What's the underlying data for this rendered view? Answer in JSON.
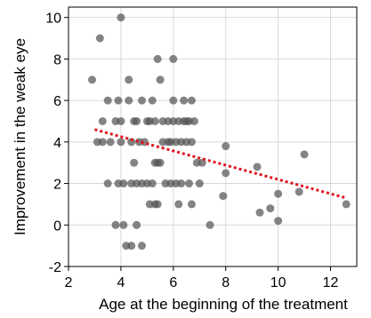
{
  "chart_data": {
    "type": "scatter",
    "xlabel": "Age at the beginning of the treatment",
    "ylabel": "Improvement in the weak eye",
    "xlim": [
      2,
      13
    ],
    "ylim": [
      -2,
      10.5
    ],
    "xticks": [
      "2",
      "4",
      "6",
      "8",
      "10",
      "12"
    ],
    "yticks": [
      "-2",
      "0",
      "2",
      "4",
      "6",
      "8",
      "10"
    ],
    "grid": true,
    "legend": false,
    "marker_color": "#555555",
    "trend_color": "#e0141e",
    "trendline": {
      "x": [
        3.0,
        12.6
      ],
      "y": [
        4.6,
        1.3
      ]
    },
    "points": [
      {
        "x": 2.9,
        "y": 7
      },
      {
        "x": 3.1,
        "y": 4
      },
      {
        "x": 3.2,
        "y": 9
      },
      {
        "x": 3.3,
        "y": 5
      },
      {
        "x": 3.3,
        "y": 4
      },
      {
        "x": 3.5,
        "y": 6
      },
      {
        "x": 3.5,
        "y": 2
      },
      {
        "x": 3.6,
        "y": 4
      },
      {
        "x": 3.8,
        "y": 5
      },
      {
        "x": 3.8,
        "y": 0
      },
      {
        "x": 3.9,
        "y": 6
      },
      {
        "x": 3.9,
        "y": 2
      },
      {
        "x": 4.0,
        "y": 10
      },
      {
        "x": 4.0,
        "y": 5
      },
      {
        "x": 4.0,
        "y": 4
      },
      {
        "x": 4.1,
        "y": 2
      },
      {
        "x": 4.1,
        "y": 0
      },
      {
        "x": 4.2,
        "y": -1
      },
      {
        "x": 4.3,
        "y": 7
      },
      {
        "x": 4.3,
        "y": 6
      },
      {
        "x": 4.4,
        "y": 4
      },
      {
        "x": 4.4,
        "y": 2
      },
      {
        "x": 4.4,
        "y": -1
      },
      {
        "x": 4.5,
        "y": 3
      },
      {
        "x": 4.5,
        "y": 5
      },
      {
        "x": 4.6,
        "y": 5
      },
      {
        "x": 4.6,
        "y": 2
      },
      {
        "x": 4.6,
        "y": 0
      },
      {
        "x": 4.7,
        "y": 4
      },
      {
        "x": 4.8,
        "y": 6
      },
      {
        "x": 4.8,
        "y": 2
      },
      {
        "x": 4.8,
        "y": -1
      },
      {
        "x": 4.9,
        "y": 4
      },
      {
        "x": 5.0,
        "y": 5
      },
      {
        "x": 5.0,
        "y": 2
      },
      {
        "x": 5.1,
        "y": 5
      },
      {
        "x": 5.1,
        "y": 1
      },
      {
        "x": 5.2,
        "y": 6
      },
      {
        "x": 5.2,
        "y": 2
      },
      {
        "x": 5.3,
        "y": 5
      },
      {
        "x": 5.3,
        "y": 3
      },
      {
        "x": 5.3,
        "y": 1
      },
      {
        "x": 5.4,
        "y": 8
      },
      {
        "x": 5.4,
        "y": 3
      },
      {
        "x": 5.4,
        "y": 1
      },
      {
        "x": 5.5,
        "y": 7
      },
      {
        "x": 5.5,
        "y": 3
      },
      {
        "x": 5.6,
        "y": 5
      },
      {
        "x": 5.6,
        "y": 4
      },
      {
        "x": 5.7,
        "y": 2
      },
      {
        "x": 5.8,
        "y": 4
      },
      {
        "x": 5.8,
        "y": 5
      },
      {
        "x": 5.9,
        "y": 2
      },
      {
        "x": 5.9,
        "y": 4
      },
      {
        "x": 6.0,
        "y": 8
      },
      {
        "x": 6.0,
        "y": 5
      },
      {
        "x": 6.0,
        "y": 6
      },
      {
        "x": 6.1,
        "y": 4
      },
      {
        "x": 6.1,
        "y": 2
      },
      {
        "x": 6.2,
        "y": 5
      },
      {
        "x": 6.2,
        "y": 1
      },
      {
        "x": 6.3,
        "y": 4
      },
      {
        "x": 6.3,
        "y": 2
      },
      {
        "x": 6.4,
        "y": 5
      },
      {
        "x": 6.4,
        "y": 6
      },
      {
        "x": 6.5,
        "y": 4
      },
      {
        "x": 6.5,
        "y": 5
      },
      {
        "x": 6.6,
        "y": 2
      },
      {
        "x": 6.6,
        "y": 5
      },
      {
        "x": 6.7,
        "y": 4
      },
      {
        "x": 6.7,
        "y": 6
      },
      {
        "x": 6.7,
        "y": 1
      },
      {
        "x": 6.8,
        "y": 5
      },
      {
        "x": 6.9,
        "y": 3
      },
      {
        "x": 7.0,
        "y": 2
      },
      {
        "x": 7.1,
        "y": 3
      },
      {
        "x": 7.4,
        "y": 0
      },
      {
        "x": 7.9,
        "y": 1.4
      },
      {
        "x": 8.0,
        "y": 3.8
      },
      {
        "x": 8.0,
        "y": 2.5
      },
      {
        "x": 9.2,
        "y": 2.8
      },
      {
        "x": 9.3,
        "y": 0.6
      },
      {
        "x": 9.7,
        "y": 0.8
      },
      {
        "x": 10.0,
        "y": 1.5
      },
      {
        "x": 10.0,
        "y": 0.2
      },
      {
        "x": 10.8,
        "y": 1.6
      },
      {
        "x": 11.0,
        "y": 3.4
      },
      {
        "x": 12.6,
        "y": 1.0
      }
    ]
  }
}
